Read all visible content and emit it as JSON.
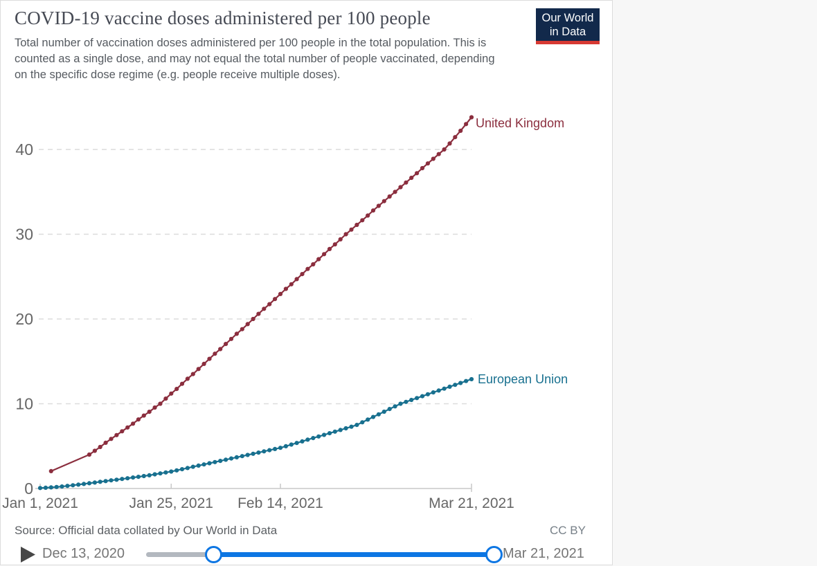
{
  "header": {
    "title": "COVID-19 vaccine doses administered per 100 people",
    "subtitle": "Total number of vaccination doses administered per 100 people in the total population. This is counted as a single dose, and may not equal the total number of people vaccinated, depending on the specific dose regime (e.g. people receive multiple doses).",
    "logo": {
      "line1": "Our World",
      "line2": "in Data",
      "bg_color": "#12294b",
      "bar_color": "#d73a33"
    }
  },
  "chart_data": {
    "type": "line",
    "title": "COVID-19 vaccine doses administered per 100 people",
    "xlabel": "",
    "ylabel": "",
    "grid": true,
    "legend_position": "end-of-line",
    "y_axis": {
      "ticks": [
        0,
        10,
        20,
        30,
        40
      ],
      "range": [
        0,
        44.6
      ]
    },
    "x_axis": {
      "unit": "days since Jan 1, 2021",
      "range_days": [
        0,
        79
      ],
      "ticks": [
        {
          "day": 0,
          "label": "Jan 1, 2021"
        },
        {
          "day": 24,
          "label": "Jan 25, 2021"
        },
        {
          "day": 44,
          "label": "Feb 14, 2021"
        },
        {
          "day": 79,
          "label": "Mar 21, 2021"
        }
      ]
    },
    "series": [
      {
        "name": "United Kingdom",
        "color": "#8b2e3e",
        "points": [
          [
            2,
            2.05
          ],
          [
            9,
            4.0
          ],
          [
            10,
            4.45
          ],
          [
            11,
            4.9
          ],
          [
            12,
            5.4
          ],
          [
            13,
            5.85
          ],
          [
            14,
            6.3
          ],
          [
            15,
            6.75
          ],
          [
            16,
            7.2
          ],
          [
            17,
            7.65
          ],
          [
            18,
            8.15
          ],
          [
            19,
            8.6
          ],
          [
            20,
            9.05
          ],
          [
            21,
            9.55
          ],
          [
            22,
            10.0
          ],
          [
            23,
            10.6
          ],
          [
            24,
            11.2
          ],
          [
            25,
            11.75
          ],
          [
            26,
            12.35
          ],
          [
            27,
            12.95
          ],
          [
            28,
            13.5
          ],
          [
            29,
            14.1
          ],
          [
            30,
            14.7
          ],
          [
            31,
            15.3
          ],
          [
            32,
            15.9
          ],
          [
            33,
            16.45
          ],
          [
            34,
            17.05
          ],
          [
            35,
            17.65
          ],
          [
            36,
            18.25
          ],
          [
            37,
            18.8
          ],
          [
            38,
            19.4
          ],
          [
            39,
            20.0
          ],
          [
            40,
            20.6
          ],
          [
            41,
            21.2
          ],
          [
            42,
            21.75
          ],
          [
            43,
            22.35
          ],
          [
            44,
            22.95
          ],
          [
            45,
            23.55
          ],
          [
            46,
            24.1
          ],
          [
            47,
            24.7
          ],
          [
            48,
            25.3
          ],
          [
            49,
            25.9
          ],
          [
            50,
            26.45
          ],
          [
            51,
            27.05
          ],
          [
            52,
            27.65
          ],
          [
            53,
            28.25
          ],
          [
            54,
            28.8
          ],
          [
            55,
            29.4
          ],
          [
            56,
            30.0
          ],
          [
            57,
            30.55
          ],
          [
            58,
            31.1
          ],
          [
            59,
            31.65
          ],
          [
            60,
            32.2
          ],
          [
            61,
            32.8
          ],
          [
            62,
            33.35
          ],
          [
            63,
            33.9
          ],
          [
            64,
            34.45
          ],
          [
            65,
            35.0
          ],
          [
            66,
            35.55
          ],
          [
            67,
            36.1
          ],
          [
            68,
            36.65
          ],
          [
            69,
            37.2
          ],
          [
            70,
            37.8
          ],
          [
            71,
            38.35
          ],
          [
            72,
            38.9
          ],
          [
            73,
            39.45
          ],
          [
            74,
            40.0
          ],
          [
            75,
            40.7
          ],
          [
            76,
            41.45
          ],
          [
            77,
            42.2
          ],
          [
            78,
            43.0
          ],
          [
            79,
            43.8
          ]
        ]
      },
      {
        "name": "European Union",
        "color": "#18708f",
        "points": [
          [
            0,
            0.06
          ],
          [
            1,
            0.09
          ],
          [
            2,
            0.13
          ],
          [
            3,
            0.18
          ],
          [
            4,
            0.24
          ],
          [
            5,
            0.31
          ],
          [
            6,
            0.38
          ],
          [
            7,
            0.46
          ],
          [
            8,
            0.54
          ],
          [
            9,
            0.62
          ],
          [
            10,
            0.7
          ],
          [
            11,
            0.79
          ],
          [
            12,
            0.87
          ],
          [
            13,
            0.96
          ],
          [
            14,
            1.04
          ],
          [
            15,
            1.13
          ],
          [
            16,
            1.21
          ],
          [
            17,
            1.3
          ],
          [
            18,
            1.38
          ],
          [
            19,
            1.47
          ],
          [
            20,
            1.56
          ],
          [
            21,
            1.67
          ],
          [
            22,
            1.78
          ],
          [
            23,
            1.89
          ],
          [
            24,
            2.0
          ],
          [
            25,
            2.14
          ],
          [
            26,
            2.28
          ],
          [
            27,
            2.42
          ],
          [
            28,
            2.56
          ],
          [
            29,
            2.7
          ],
          [
            30,
            2.84
          ],
          [
            31,
            2.98
          ],
          [
            32,
            3.12
          ],
          [
            33,
            3.26
          ],
          [
            34,
            3.4
          ],
          [
            35,
            3.54
          ],
          [
            36,
            3.68
          ],
          [
            37,
            3.82
          ],
          [
            38,
            3.96
          ],
          [
            39,
            4.1
          ],
          [
            40,
            4.24
          ],
          [
            41,
            4.38
          ],
          [
            42,
            4.52
          ],
          [
            43,
            4.66
          ],
          [
            44,
            4.8
          ],
          [
            45,
            4.99
          ],
          [
            46,
            5.18
          ],
          [
            47,
            5.37
          ],
          [
            48,
            5.56
          ],
          [
            49,
            5.76
          ],
          [
            50,
            5.95
          ],
          [
            51,
            6.14
          ],
          [
            52,
            6.33
          ],
          [
            53,
            6.52
          ],
          [
            54,
            6.71
          ],
          [
            55,
            6.91
          ],
          [
            56,
            7.1
          ],
          [
            57,
            7.29
          ],
          [
            58,
            7.5
          ],
          [
            59,
            7.81
          ],
          [
            60,
            8.13
          ],
          [
            61,
            8.44
          ],
          [
            62,
            8.75
          ],
          [
            63,
            9.06
          ],
          [
            64,
            9.38
          ],
          [
            65,
            9.69
          ],
          [
            66,
            10.0
          ],
          [
            67,
            10.22
          ],
          [
            68,
            10.45
          ],
          [
            69,
            10.67
          ],
          [
            70,
            10.89
          ],
          [
            71,
            11.12
          ],
          [
            72,
            11.34
          ],
          [
            73,
            11.56
          ],
          [
            74,
            11.78
          ],
          [
            75,
            12.01
          ],
          [
            76,
            12.23
          ],
          [
            77,
            12.45
          ],
          [
            78,
            12.68
          ],
          [
            79,
            12.9
          ]
        ]
      }
    ]
  },
  "series_labels": {
    "uk": "United Kingdom",
    "eu": "European Union"
  },
  "footer": {
    "source": "Source: Official data collated by Our World in Data",
    "license": "CC BY"
  },
  "timeline": {
    "start_label": "Dec 13, 2020",
    "end_label": "Mar 21, 2021",
    "total_days": 98,
    "selected_start_day": 19,
    "selected_end_day": 98,
    "active_color": "#0d76e3",
    "inactive_color": "#b3b8bf"
  }
}
